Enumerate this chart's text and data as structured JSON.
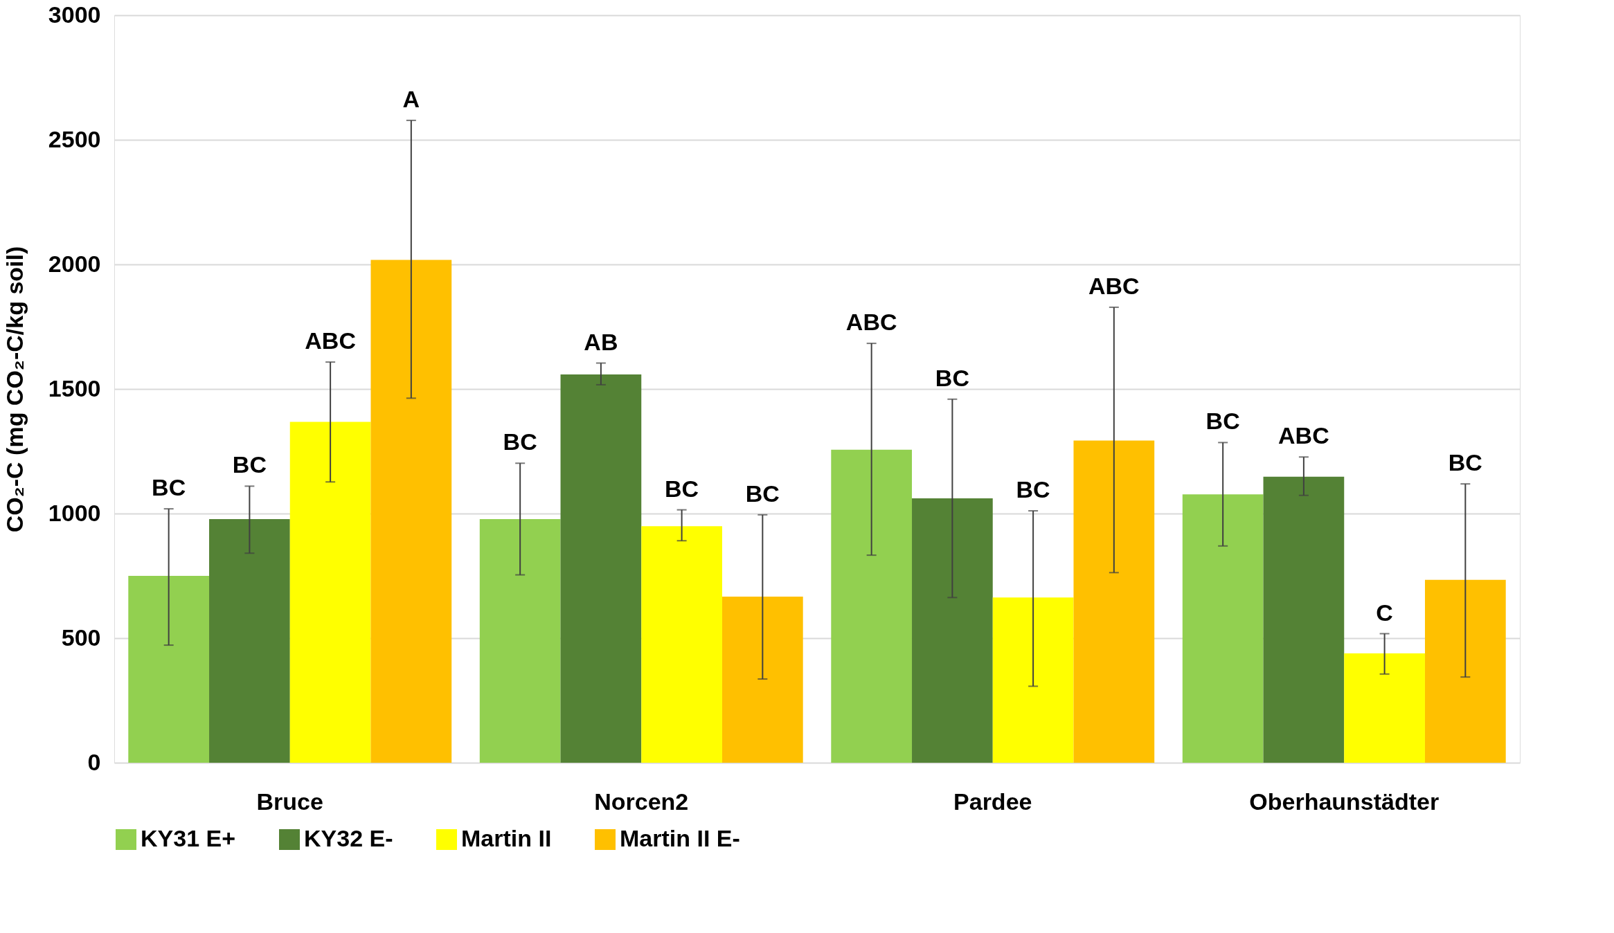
{
  "chart_data": {
    "type": "bar",
    "ylabel": "CO₂-C (mg CO₂-C/kg soil)",
    "categories": [
      "Bruce",
      "Norcen2",
      "Pardee",
      "Oberhaunstädter"
    ],
    "series": [
      {
        "name": "KY31 E+",
        "color": "#92d050",
        "values": [
          750,
          978,
          1256,
          1077
        ],
        "errors": [
          [
            472,
            1019
          ],
          [
            754,
            1202
          ],
          [
            833,
            1683
          ],
          [
            870,
            1285
          ]
        ]
      },
      {
        "name": "KY32 E-",
        "color": "#548235",
        "values": [
          978,
          1558,
          1061,
          1148
        ],
        "errors": [
          [
            841,
            1110
          ],
          [
            1517,
            1604
          ],
          [
            663,
            1459
          ],
          [
            1073,
            1227
          ]
        ]
      },
      {
        "name": "Martin II",
        "color": "#ffff00",
        "values": [
          1368,
          949,
          663,
          439
        ],
        "errors": [
          [
            1127,
            1608
          ],
          [
            891,
            1015
          ],
          [
            307,
            1011
          ],
          [
            356,
            518
          ]
        ]
      },
      {
        "name": "Martin II E-",
        "color": "#ffc000",
        "values": [
          2018,
          667,
          1293,
          734
        ],
        "errors": [
          [
            1463,
            2578
          ],
          [
            336,
            995
          ],
          [
            763,
            1828
          ],
          [
            344,
            1119
          ]
        ]
      }
    ],
    "ylim": [
      0,
      3000
    ],
    "yticks": [
      0,
      500,
      1000,
      1500,
      2000,
      2500,
      3000
    ],
    "grid": "y",
    "legend": "bottom",
    "annotations": [
      "BC",
      "BC",
      "ABC",
      "A",
      "BC",
      "AB",
      "BC",
      "BC",
      "ABC",
      "BC",
      "BC",
      "ABC",
      "BC",
      "ABC",
      "C",
      "BC"
    ]
  }
}
